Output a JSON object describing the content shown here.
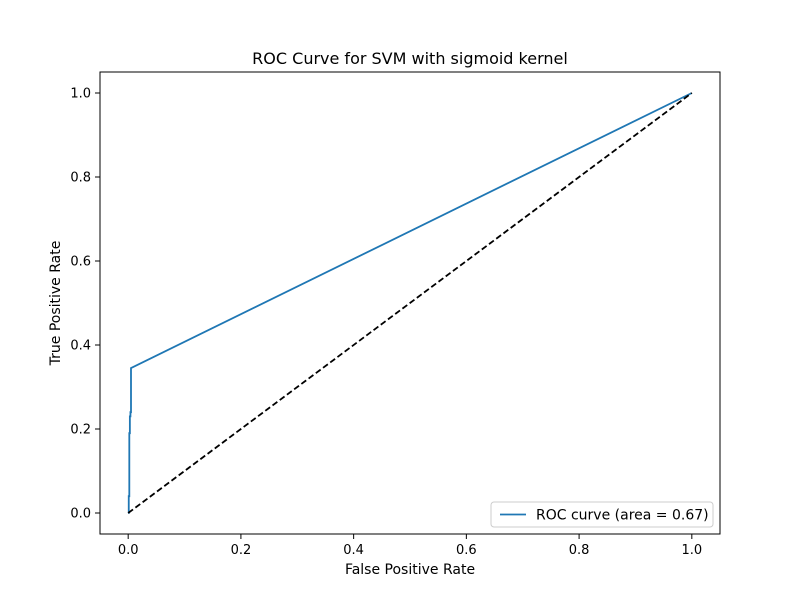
{
  "chart_data": {
    "type": "line",
    "title": "ROC Curve for SVM with sigmoid kernel",
    "xlabel": "False Positive Rate",
    "ylabel": "True Positive Rate",
    "xlim": [
      -0.05,
      1.05
    ],
    "ylim": [
      -0.05,
      1.05
    ],
    "xticks": [
      0.0,
      0.2,
      0.4,
      0.6,
      0.8,
      1.0
    ],
    "xtick_labels": [
      "0.0",
      "0.2",
      "0.4",
      "0.6",
      "0.8",
      "1.0"
    ],
    "yticks": [
      0.0,
      0.2,
      0.4,
      0.6,
      0.8,
      1.0
    ],
    "ytick_labels": [
      "0.0",
      "0.2",
      "0.4",
      "0.6",
      "0.8",
      "1.0"
    ],
    "grid": false,
    "legend_position": "lower right",
    "series": [
      {
        "name": "ROC curve (area = 0.67)",
        "color": "#1f77b4",
        "style": "solid",
        "x": [
          0.0,
          0.001,
          0.001,
          0.002,
          0.002,
          0.003,
          0.003,
          0.004,
          0.004,
          0.005,
          0.005,
          1.0
        ],
        "y": [
          0.0,
          0.0,
          0.04,
          0.04,
          0.19,
          0.19,
          0.23,
          0.23,
          0.24,
          0.24,
          0.345,
          1.0
        ]
      },
      {
        "name": "",
        "color": "#000000",
        "style": "dashed",
        "x": [
          0.0,
          1.0
        ],
        "y": [
          0.0,
          1.0
        ]
      }
    ]
  }
}
